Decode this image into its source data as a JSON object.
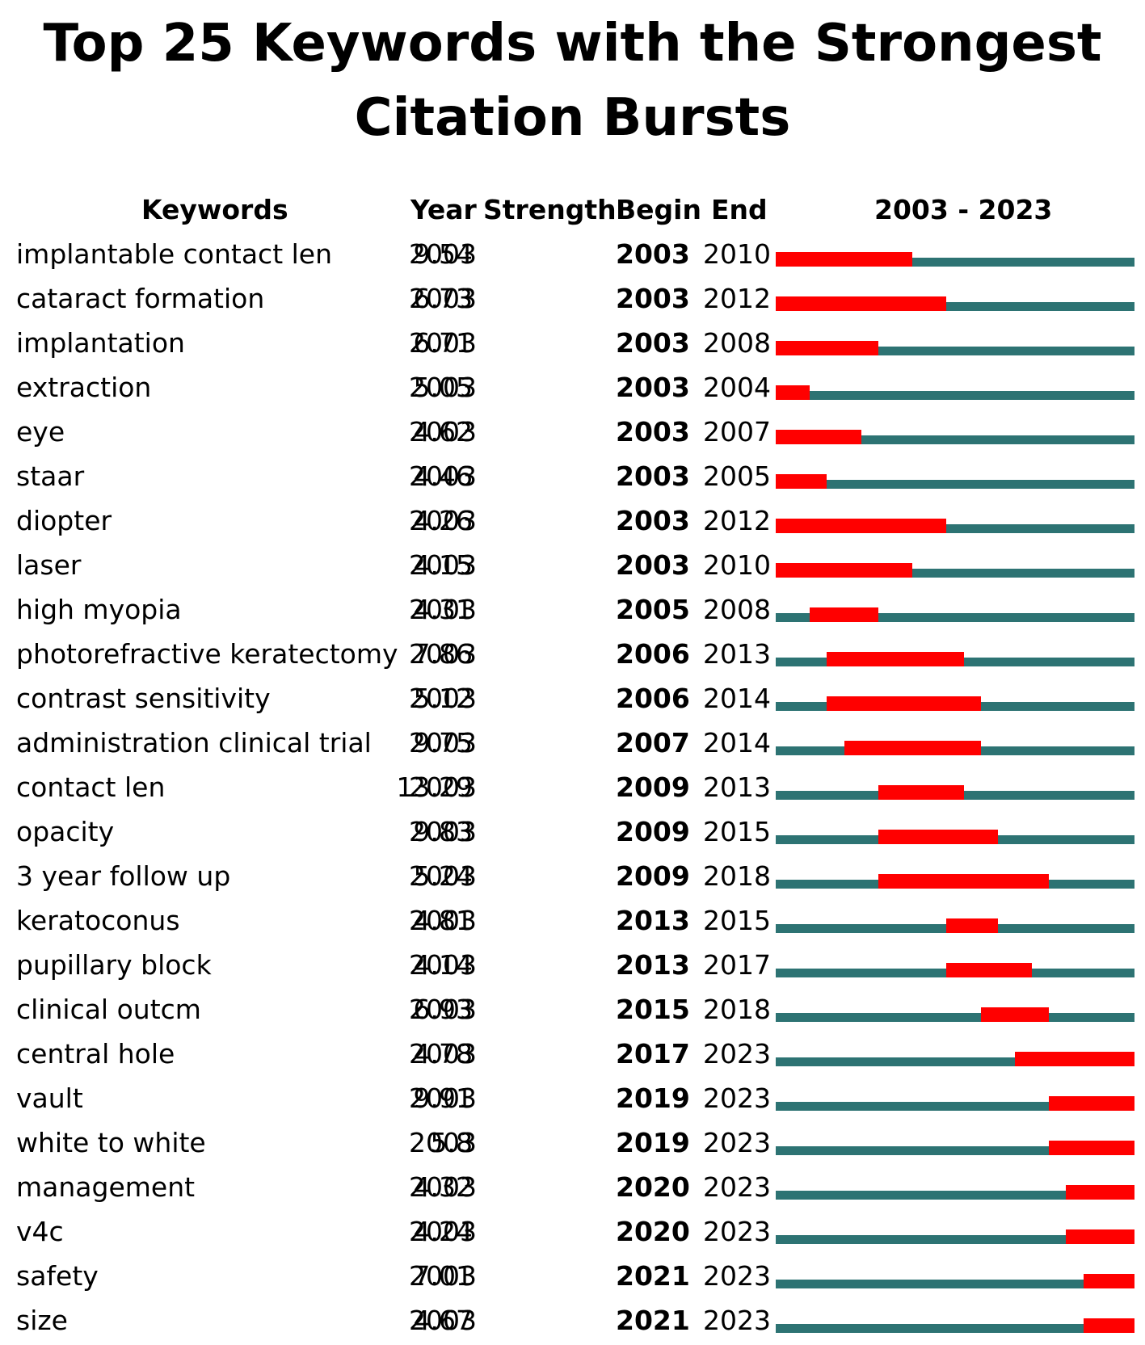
{
  "title_lines": [
    "Top 25 Keywords with the Strongest",
    "Citation Bursts"
  ],
  "headers": {
    "keywords": "Keywords",
    "year": "Year",
    "strength": "Strength",
    "begin": "Begin",
    "end": "End",
    "range": "2003 - 2023"
  },
  "colors": {
    "track": "#2d7373",
    "burst": "#ff0000"
  },
  "chart_data": {
    "type": "table",
    "title": "Top 25 Keywords with the Strongest Citation Bursts",
    "timeline": {
      "start": 2003,
      "end": 2023
    },
    "rows": [
      {
        "keyword": "implantable contact len",
        "year": "2003",
        "strength": "9.54",
        "begin": "2003",
        "end": "2010"
      },
      {
        "keyword": "cataract formation",
        "year": "2003",
        "strength": "6.73",
        "begin": "2003",
        "end": "2012"
      },
      {
        "keyword": "implantation",
        "year": "2003",
        "strength": "6.71",
        "begin": "2003",
        "end": "2008"
      },
      {
        "keyword": "extraction",
        "year": "2003",
        "strength": "5.05",
        "begin": "2003",
        "end": "2004"
      },
      {
        "keyword": "eye",
        "year": "2003",
        "strength": "4.62",
        "begin": "2003",
        "end": "2007"
      },
      {
        "keyword": "staar",
        "year": "2003",
        "strength": "4.46",
        "begin": "2003",
        "end": "2005"
      },
      {
        "keyword": "diopter",
        "year": "2003",
        "strength": "4.26",
        "begin": "2003",
        "end": "2012"
      },
      {
        "keyword": "laser",
        "year": "2003",
        "strength": "4.15",
        "begin": "2003",
        "end": "2010"
      },
      {
        "keyword": "high myopia",
        "year": "2003",
        "strength": "4.31",
        "begin": "2005",
        "end": "2008"
      },
      {
        "keyword": "photorefractive keratectomy",
        "year": "2003",
        "strength": "7.86",
        "begin": "2006",
        "end": "2013"
      },
      {
        "keyword": "contrast sensitivity",
        "year": "2003",
        "strength": "5.12",
        "begin": "2006",
        "end": "2014"
      },
      {
        "keyword": "administration clinical trial",
        "year": "2003",
        "strength": "9.75",
        "begin": "2007",
        "end": "2014"
      },
      {
        "keyword": "contact len",
        "year": "2003",
        "strength": "13.29",
        "begin": "2009",
        "end": "2013"
      },
      {
        "keyword": "opacity",
        "year": "2003",
        "strength": "9.83",
        "begin": "2009",
        "end": "2015"
      },
      {
        "keyword": "3 year follow up",
        "year": "2003",
        "strength": "5.24",
        "begin": "2009",
        "end": "2018"
      },
      {
        "keyword": "keratoconus",
        "year": "2003",
        "strength": "4.81",
        "begin": "2013",
        "end": "2015"
      },
      {
        "keyword": "pupillary block",
        "year": "2003",
        "strength": "4.14",
        "begin": "2013",
        "end": "2017"
      },
      {
        "keyword": "clinical outcm",
        "year": "2003",
        "strength": "6.93",
        "begin": "2015",
        "end": "2018"
      },
      {
        "keyword": "central hole",
        "year": "2003",
        "strength": "4.78",
        "begin": "2017",
        "end": "2023"
      },
      {
        "keyword": "vault",
        "year": "2003",
        "strength": "9.91",
        "begin": "2019",
        "end": "2023"
      },
      {
        "keyword": "white to white",
        "year": "2003",
        "strength": "5.8",
        "begin": "2019",
        "end": "2023"
      },
      {
        "keyword": "management",
        "year": "2003",
        "strength": "4.32",
        "begin": "2020",
        "end": "2023"
      },
      {
        "keyword": "v4c",
        "year": "2003",
        "strength": "4.24",
        "begin": "2020",
        "end": "2023"
      },
      {
        "keyword": "safety",
        "year": "2003",
        "strength": "7.01",
        "begin": "2021",
        "end": "2023"
      },
      {
        "keyword": "size",
        "year": "2003",
        "strength": "4.67",
        "begin": "2021",
        "end": "2023"
      }
    ]
  }
}
